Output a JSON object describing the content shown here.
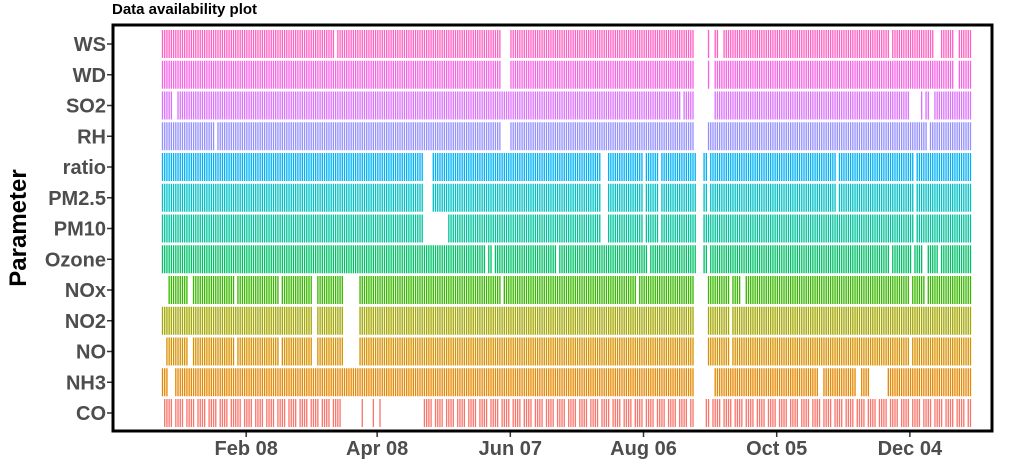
{
  "chart_data": {
    "type": "heatmap",
    "title": "Data availability plot",
    "xlabel": "",
    "ylabel": "Parameter",
    "date_start": "2022-01-01",
    "date_end": "2022-12-31",
    "xlim": [
      "2021-12-10",
      "2023-01-10"
    ],
    "x_ticks": [
      {
        "label": "Feb 08",
        "date": "2022-02-08"
      },
      {
        "label": "Apr 08",
        "date": "2022-04-08"
      },
      {
        "label": "Jun 07",
        "date": "2022-06-07"
      },
      {
        "label": "Aug 06",
        "date": "2022-08-06"
      },
      {
        "label": "Oct 05",
        "date": "2022-10-05"
      },
      {
        "label": "Dec 04",
        "date": "2022-12-04"
      }
    ],
    "grid": false,
    "legend": "none",
    "series": [
      {
        "name": "WS",
        "color": "#ff61c3",
        "gaps": [
          [
            "2022-03-20",
            "2022-03-20"
          ],
          [
            "2022-06-03",
            "2022-06-06"
          ],
          [
            "2022-08-29",
            "2022-09-03"
          ],
          [
            "2022-09-05",
            "2022-09-06"
          ],
          [
            "2022-09-09",
            "2022-09-10"
          ],
          [
            "2022-11-25",
            "2022-11-25"
          ],
          [
            "2022-12-15",
            "2022-12-17"
          ],
          [
            "2022-12-24",
            "2022-12-25"
          ]
        ]
      },
      {
        "name": "WD",
        "color": "#f564e3",
        "gaps": [
          [
            "2022-06-03",
            "2022-06-06"
          ],
          [
            "2022-08-29",
            "2022-09-03"
          ],
          [
            "2022-09-05",
            "2022-09-06"
          ],
          [
            "2022-12-24",
            "2022-12-25"
          ]
        ]
      },
      {
        "name": "SO2",
        "color": "#db72fb",
        "gaps": [
          [
            "2022-01-06",
            "2022-01-07"
          ],
          [
            "2022-08-23",
            "2022-08-23"
          ],
          [
            "2022-08-29",
            "2022-09-06"
          ],
          [
            "2022-12-04",
            "2022-12-08"
          ],
          [
            "2022-12-10",
            "2022-12-10"
          ],
          [
            "2022-12-13",
            "2022-12-14"
          ]
        ]
      },
      {
        "name": "RH",
        "color": "#9590ff",
        "gaps": [
          [
            "2022-01-25",
            "2022-01-25"
          ],
          [
            "2022-06-03",
            "2022-06-06"
          ],
          [
            "2022-08-29",
            "2022-09-03"
          ],
          [
            "2022-12-12",
            "2022-12-12"
          ]
        ]
      },
      {
        "name": "ratio",
        "color": "#00b0f6",
        "gaps": [
          [
            "2022-04-29",
            "2022-05-02"
          ],
          [
            "2022-07-18",
            "2022-07-20"
          ],
          [
            "2022-08-06",
            "2022-08-06"
          ],
          [
            "2022-08-13",
            "2022-08-13"
          ],
          [
            "2022-08-30",
            "2022-09-01"
          ],
          [
            "2022-09-04",
            "2022-09-04"
          ],
          [
            "2022-11-01",
            "2022-11-01"
          ],
          [
            "2022-12-06",
            "2022-12-06"
          ]
        ]
      },
      {
        "name": "PM2.5",
        "color": "#00bfc4",
        "gaps": [
          [
            "2022-04-29",
            "2022-05-02"
          ],
          [
            "2022-07-18",
            "2022-07-20"
          ],
          [
            "2022-08-06",
            "2022-08-06"
          ],
          [
            "2022-08-13",
            "2022-08-13"
          ],
          [
            "2022-08-30",
            "2022-09-01"
          ],
          [
            "2022-09-04",
            "2022-09-04"
          ],
          [
            "2022-11-01",
            "2022-11-01"
          ],
          [
            "2022-12-06",
            "2022-12-06"
          ]
        ]
      },
      {
        "name": "PM10",
        "color": "#00c19a",
        "gaps": [
          [
            "2022-04-29",
            "2022-05-09"
          ],
          [
            "2022-07-18",
            "2022-07-20"
          ],
          [
            "2022-08-06",
            "2022-08-06"
          ],
          [
            "2022-08-13",
            "2022-08-13"
          ],
          [
            "2022-08-30",
            "2022-09-01"
          ],
          [
            "2022-12-06",
            "2022-12-06"
          ]
        ]
      },
      {
        "name": "Ozone",
        "color": "#00be67",
        "gaps": [
          [
            "2022-05-27",
            "2022-05-27"
          ],
          [
            "2022-05-30",
            "2022-05-30"
          ],
          [
            "2022-06-28",
            "2022-06-28"
          ],
          [
            "2022-08-08",
            "2022-08-08"
          ],
          [
            "2022-08-30",
            "2022-09-01"
          ],
          [
            "2022-09-04",
            "2022-09-04"
          ],
          [
            "2022-11-25",
            "2022-11-25"
          ],
          [
            "2022-12-05",
            "2022-12-05"
          ],
          [
            "2022-12-10",
            "2022-12-11"
          ],
          [
            "2022-12-17",
            "2022-12-17"
          ]
        ]
      },
      {
        "name": "NOx",
        "color": "#39b600",
        "gaps": [
          [
            "2022-01-01",
            "2022-01-03"
          ],
          [
            "2022-01-13",
            "2022-01-14"
          ],
          [
            "2022-02-03",
            "2022-02-03"
          ],
          [
            "2022-02-23",
            "2022-02-23"
          ],
          [
            "2022-03-10",
            "2022-03-11"
          ],
          [
            "2022-03-24",
            "2022-03-30"
          ],
          [
            "2022-06-03",
            "2022-06-03"
          ],
          [
            "2022-08-03",
            "2022-08-03"
          ],
          [
            "2022-08-29",
            "2022-09-03"
          ],
          [
            "2022-09-14",
            "2022-09-14"
          ],
          [
            "2022-09-19",
            "2022-09-20"
          ],
          [
            "2022-12-04",
            "2022-12-04"
          ],
          [
            "2022-12-11",
            "2022-12-11"
          ]
        ]
      },
      {
        "name": "NO2",
        "color": "#a3a500",
        "gaps": [
          [
            "2022-03-10",
            "2022-03-11"
          ],
          [
            "2022-03-24",
            "2022-03-30"
          ],
          [
            "2022-08-29",
            "2022-09-03"
          ],
          [
            "2022-09-14",
            "2022-09-14"
          ]
        ]
      },
      {
        "name": "NO",
        "color": "#d89000",
        "gaps": [
          [
            "2022-01-01",
            "2022-01-02"
          ],
          [
            "2022-01-13",
            "2022-01-14"
          ],
          [
            "2022-02-03",
            "2022-02-03"
          ],
          [
            "2022-02-23",
            "2022-02-23"
          ],
          [
            "2022-03-10",
            "2022-03-11"
          ],
          [
            "2022-03-24",
            "2022-03-30"
          ],
          [
            "2022-08-29",
            "2022-09-03"
          ],
          [
            "2022-09-14",
            "2022-09-14"
          ],
          [
            "2022-12-04",
            "2022-12-04"
          ]
        ]
      },
      {
        "name": "NH3",
        "color": "#e58700",
        "gaps": [
          [
            "2022-01-04",
            "2022-01-06"
          ],
          [
            "2022-08-29",
            "2022-09-06"
          ],
          [
            "2022-10-24",
            "2022-10-25"
          ],
          [
            "2022-11-10",
            "2022-11-11"
          ],
          [
            "2022-11-16",
            "2022-11-23"
          ]
        ]
      },
      {
        "name": "CO",
        "color": "#f8766d",
        "gaps": [
          [
            "2022-01-01",
            "2022-01-01"
          ],
          [
            "2022-01-06",
            "2022-01-06"
          ],
          [
            "2022-01-11",
            "2022-01-11"
          ],
          [
            "2022-01-16",
            "2022-01-16"
          ],
          [
            "2022-01-21",
            "2022-01-21"
          ],
          [
            "2022-01-26",
            "2022-01-26"
          ],
          [
            "2022-01-31",
            "2022-01-31"
          ],
          [
            "2022-02-06",
            "2022-02-06"
          ],
          [
            "2022-02-11",
            "2022-02-11"
          ],
          [
            "2022-02-16",
            "2022-02-16"
          ],
          [
            "2022-02-21",
            "2022-02-21"
          ],
          [
            "2022-02-26",
            "2022-02-26"
          ],
          [
            "2022-03-03",
            "2022-03-03"
          ],
          [
            "2022-03-08",
            "2022-03-08"
          ],
          [
            "2022-03-13",
            "2022-03-13"
          ],
          [
            "2022-03-18",
            "2022-03-18"
          ],
          [
            "2022-03-23",
            "2022-03-31"
          ],
          [
            "2022-04-02",
            "2022-04-05"
          ],
          [
            "2022-04-07",
            "2022-04-08"
          ],
          [
            "2022-04-10",
            "2022-04-28"
          ],
          [
            "2022-05-03",
            "2022-05-03"
          ],
          [
            "2022-05-08",
            "2022-05-08"
          ],
          [
            "2022-05-13",
            "2022-05-13"
          ],
          [
            "2022-05-18",
            "2022-05-18"
          ],
          [
            "2022-05-23",
            "2022-05-23"
          ],
          [
            "2022-05-28",
            "2022-05-28"
          ],
          [
            "2022-06-02",
            "2022-06-02"
          ],
          [
            "2022-06-07",
            "2022-06-07"
          ],
          [
            "2022-06-12",
            "2022-06-12"
          ],
          [
            "2022-06-17",
            "2022-06-17"
          ],
          [
            "2022-06-22",
            "2022-06-22"
          ],
          [
            "2022-06-27",
            "2022-06-27"
          ],
          [
            "2022-07-02",
            "2022-07-02"
          ],
          [
            "2022-07-07",
            "2022-07-07"
          ],
          [
            "2022-07-12",
            "2022-07-12"
          ],
          [
            "2022-07-17",
            "2022-07-17"
          ],
          [
            "2022-07-22",
            "2022-07-22"
          ],
          [
            "2022-07-27",
            "2022-07-27"
          ],
          [
            "2022-08-01",
            "2022-08-01"
          ],
          [
            "2022-08-06",
            "2022-08-06"
          ],
          [
            "2022-08-11",
            "2022-08-11"
          ],
          [
            "2022-08-16",
            "2022-08-16"
          ],
          [
            "2022-08-21",
            "2022-08-21"
          ],
          [
            "2022-08-26",
            "2022-08-26"
          ],
          [
            "2022-08-29",
            "2022-09-02"
          ],
          [
            "2022-09-05",
            "2022-09-05"
          ],
          [
            "2022-09-10",
            "2022-09-10"
          ],
          [
            "2022-09-15",
            "2022-09-15"
          ],
          [
            "2022-09-20",
            "2022-09-20"
          ],
          [
            "2022-09-25",
            "2022-09-25"
          ],
          [
            "2022-09-30",
            "2022-09-30"
          ],
          [
            "2022-10-05",
            "2022-10-05"
          ],
          [
            "2022-10-10",
            "2022-10-10"
          ],
          [
            "2022-10-15",
            "2022-10-15"
          ],
          [
            "2022-10-20",
            "2022-10-20"
          ],
          [
            "2022-10-25",
            "2022-10-25"
          ],
          [
            "2022-10-30",
            "2022-10-30"
          ],
          [
            "2022-11-04",
            "2022-11-04"
          ],
          [
            "2022-11-09",
            "2022-11-09"
          ],
          [
            "2022-11-14",
            "2022-11-14"
          ],
          [
            "2022-11-19",
            "2022-11-19"
          ],
          [
            "2022-11-24",
            "2022-11-24"
          ],
          [
            "2022-11-29",
            "2022-11-29"
          ],
          [
            "2022-12-04",
            "2022-12-04"
          ],
          [
            "2022-12-09",
            "2022-12-09"
          ],
          [
            "2022-12-14",
            "2022-12-14"
          ],
          [
            "2022-12-19",
            "2022-12-19"
          ],
          [
            "2022-12-24",
            "2022-12-24"
          ],
          [
            "2022-12-29",
            "2022-12-29"
          ]
        ]
      }
    ]
  }
}
